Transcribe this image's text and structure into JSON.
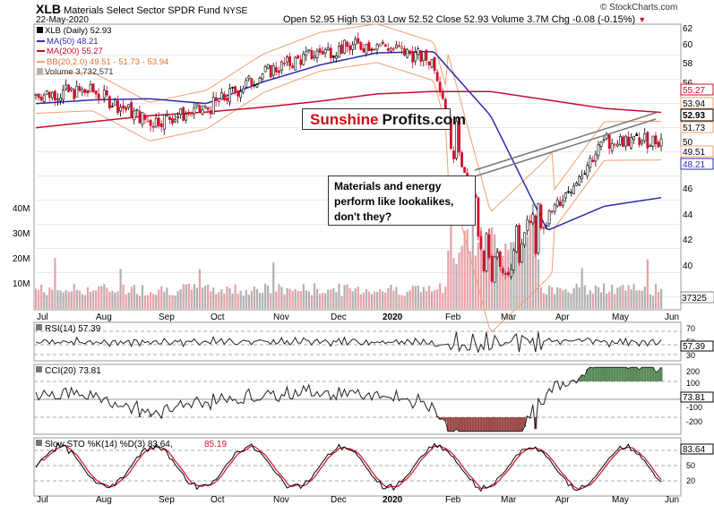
{
  "header": {
    "symbol": "XLB",
    "fund_name": "Materials Select Sector SPDR Fund",
    "exchange": "NYSE",
    "date": "22-May-2020",
    "ohlc_line": "Open 52.95  High 53.03  Low 52.52  Close 52.93  Volume 3.7M  Chg -0.08 (-0.15%)",
    "down_marker": "▼",
    "credit": "© StockCharts.com"
  },
  "legend": {
    "price": "XLB (Daily) 52.93",
    "ma50": "MA(50) 48.21",
    "ma200": "MA(200) 55.27",
    "bb": "BB(20,2.0) 49.51 - 51.73 - 53.94",
    "volume": "Volume 3,732,571"
  },
  "watermark": {
    "part1": "Sunshine",
    "part2": "Profits.com"
  },
  "annotation": {
    "line1": "Materials and energy",
    "line2": "perform like lookalikes,",
    "line3": "don't they?"
  },
  "value_tags": [
    "55.27",
    "53.94",
    "52.93",
    "51.73",
    "49.51",
    "48.21",
    "37325"
  ],
  "price_ticks": [
    "62",
    "60",
    "58",
    "56",
    "54",
    "52",
    "50",
    "48",
    "46",
    "44",
    "42",
    "40"
  ],
  "volume_ticks": [
    "40M",
    "30M",
    "20M",
    "10M"
  ],
  "x_ticks": [
    "Jul",
    "Aug",
    "Sep",
    "Oct",
    "Nov",
    "Dec",
    "2020",
    "Feb",
    "Mar",
    "Apr",
    "May",
    "Jun"
  ],
  "rsi": {
    "label": "RSI(14) 57.39",
    "ticks": [
      "70",
      "50",
      "30"
    ],
    "tag": "57.39"
  },
  "cci": {
    "label": "CCI(20) 73.81",
    "ticks": [
      "200",
      "100",
      "-100",
      "-200"
    ],
    "tag": "73.81"
  },
  "sto": {
    "label_k": "Slow STO %K(14) %D(3) 83.64,",
    "label_d": "85.19",
    "ticks": [
      "80",
      "50",
      "20"
    ],
    "tag": "83.64"
  },
  "colors": {
    "ma50": "#2b2bb0",
    "ma200": "#c0102a",
    "bb": "#f0a070",
    "up": "#000000",
    "down": "#d0102a",
    "vol_up": "#b0b0b0",
    "vol_down": "#e8a0a8",
    "cci_pos": "#5a8a5a",
    "cci_neg": "#9a4a4a",
    "watermark_red": "#d01010"
  },
  "chart_data": {
    "type": "line",
    "title": "XLB Materials Select Sector SPDR Fund NYSE",
    "x": [
      "Jul-2019",
      "Aug-2019",
      "Sep-2019",
      "Oct-2019",
      "Nov-2019",
      "Dec-2019",
      "Jan-2020",
      "Feb-2020",
      "Mar-2020",
      "Apr-2020",
      "May-2020",
      "Jun-2020"
    ],
    "ylim": [
      39,
      62.5
    ],
    "series": [
      {
        "name": "XLB (Daily)",
        "values": [
          56.8,
          57.0,
          54.5,
          55.5,
          58.5,
          60.3,
          61.0,
          59.5,
          42.0,
          46.5,
          52.9,
          52.93
        ]
      },
      {
        "name": "MA(50)",
        "values": [
          56.0,
          56.3,
          56.4,
          56.0,
          57.8,
          59.2,
          60.2,
          60.3,
          55.0,
          45.5,
          47.5,
          48.21
        ]
      },
      {
        "name": "MA(200)",
        "values": [
          54.0,
          54.5,
          55.0,
          55.3,
          55.7,
          56.2,
          56.8,
          57.0,
          57.0,
          56.3,
          55.6,
          55.27
        ]
      }
    ],
    "volume_ylim": [
      0,
      45
    ],
    "volume_unit": "M",
    "rsi_last": 57.39,
    "cci_last": 73.81,
    "sto_k_last": 83.64,
    "sto_d_last": 85.19
  }
}
